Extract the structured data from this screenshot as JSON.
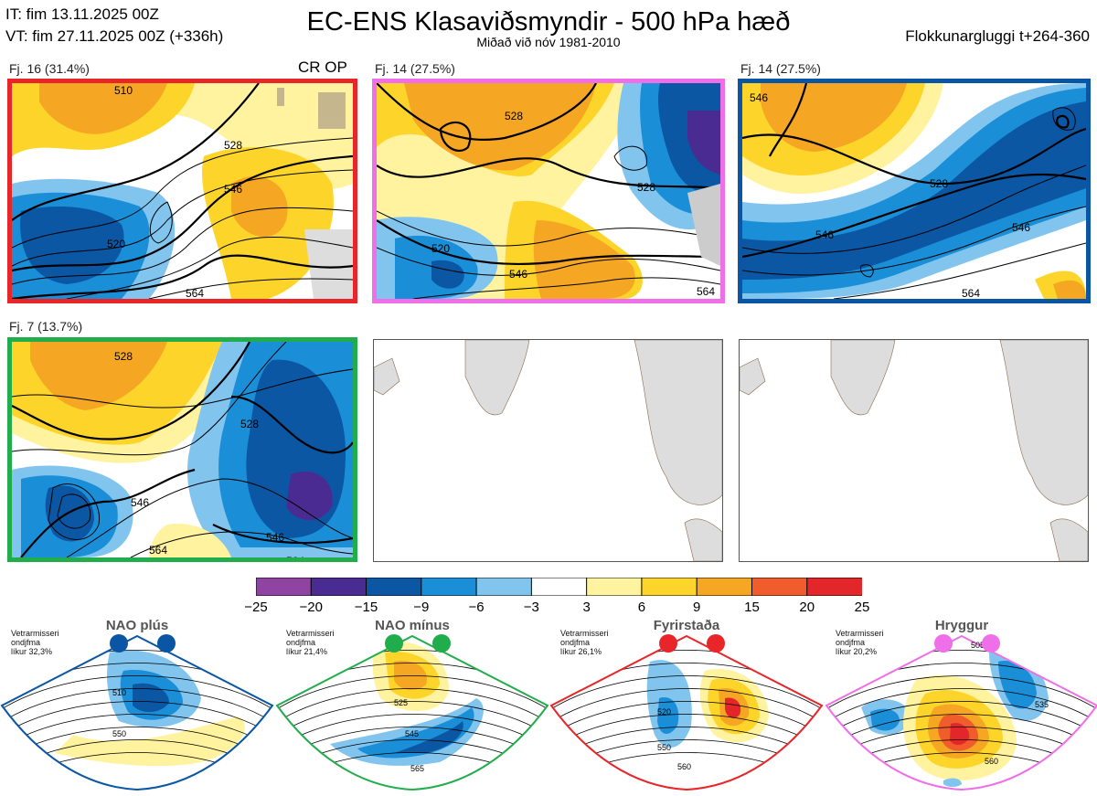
{
  "header": {
    "initial_time": "IT: fim 13.11.2025 00Z",
    "valid_time": "VT: fim 27.11.2025 00Z  (+336h)",
    "title": "EC-ENS Klasaviðsmyndir - 500 hPa hæð",
    "subtitle": "Miðað við nóv 1981-2010",
    "window": "Flokkunargluggi t+264-360"
  },
  "clusters": [
    {
      "label": "Fj. 16 (31.4%)",
      "tag": "CR OP",
      "border_color": "#e8262a",
      "contours": [
        "510",
        "528",
        "546",
        "520",
        "564"
      ]
    },
    {
      "label": "Fj. 14 (27.5%)",
      "border_color": "#ef6fe8",
      "contours": [
        "528",
        "528",
        "546",
        "520",
        "564"
      ]
    },
    {
      "label": "Fj. 14 (27.5%)",
      "border_color": "#0a56a4",
      "contours": [
        "546",
        "528",
        "546",
        "546",
        "564"
      ]
    },
    {
      "label": "Fj. 7 (13.7%)",
      "border_color": "#21ad4b",
      "contours": [
        "528",
        "528",
        "546",
        "546",
        "564",
        "564"
      ]
    }
  ],
  "colorbar": {
    "ticks": [
      "−25",
      "−20",
      "−15",
      "−9",
      "−6",
      "−3",
      "3",
      "6",
      "9",
      "15",
      "20",
      "25"
    ],
    "colors": [
      "#8e44a0",
      "#4a2b92",
      "#0b57a4",
      "#1a8fd8",
      "#81c4ee",
      "#ffffff",
      "#fff3a0",
      "#fdd52a",
      "#f5a623",
      "#f05c2b",
      "#e2262a",
      "#a50f15"
    ]
  },
  "regimes": [
    {
      "title": "NAO plús",
      "note": [
        "Vetrarmisseri",
        "ondjfma",
        "líkur 32,3%"
      ],
      "color": "#0a56a4",
      "contours": [
        "510",
        "550"
      ]
    },
    {
      "title": "NAO mínus",
      "note": [
        "Vetrarmisseri",
        "ondjfma",
        "líkur 21,4%"
      ],
      "color": "#21ad4b",
      "contours": [
        "525",
        "545",
        "565"
      ]
    },
    {
      "title": "Fyrirstaða",
      "note": [
        "Vetrarmisseri",
        "ondjfma",
        "líkur 26,1%"
      ],
      "color": "#e8262a",
      "contours": [
        "520",
        "550",
        "560"
      ]
    },
    {
      "title": "Hryggur",
      "note": [
        "Vetrarmisseri",
        "ondjfma",
        "líkur 20,2%"
      ],
      "color": "#ef6fe8",
      "contours": [
        "505",
        "535",
        "560"
      ]
    }
  ]
}
